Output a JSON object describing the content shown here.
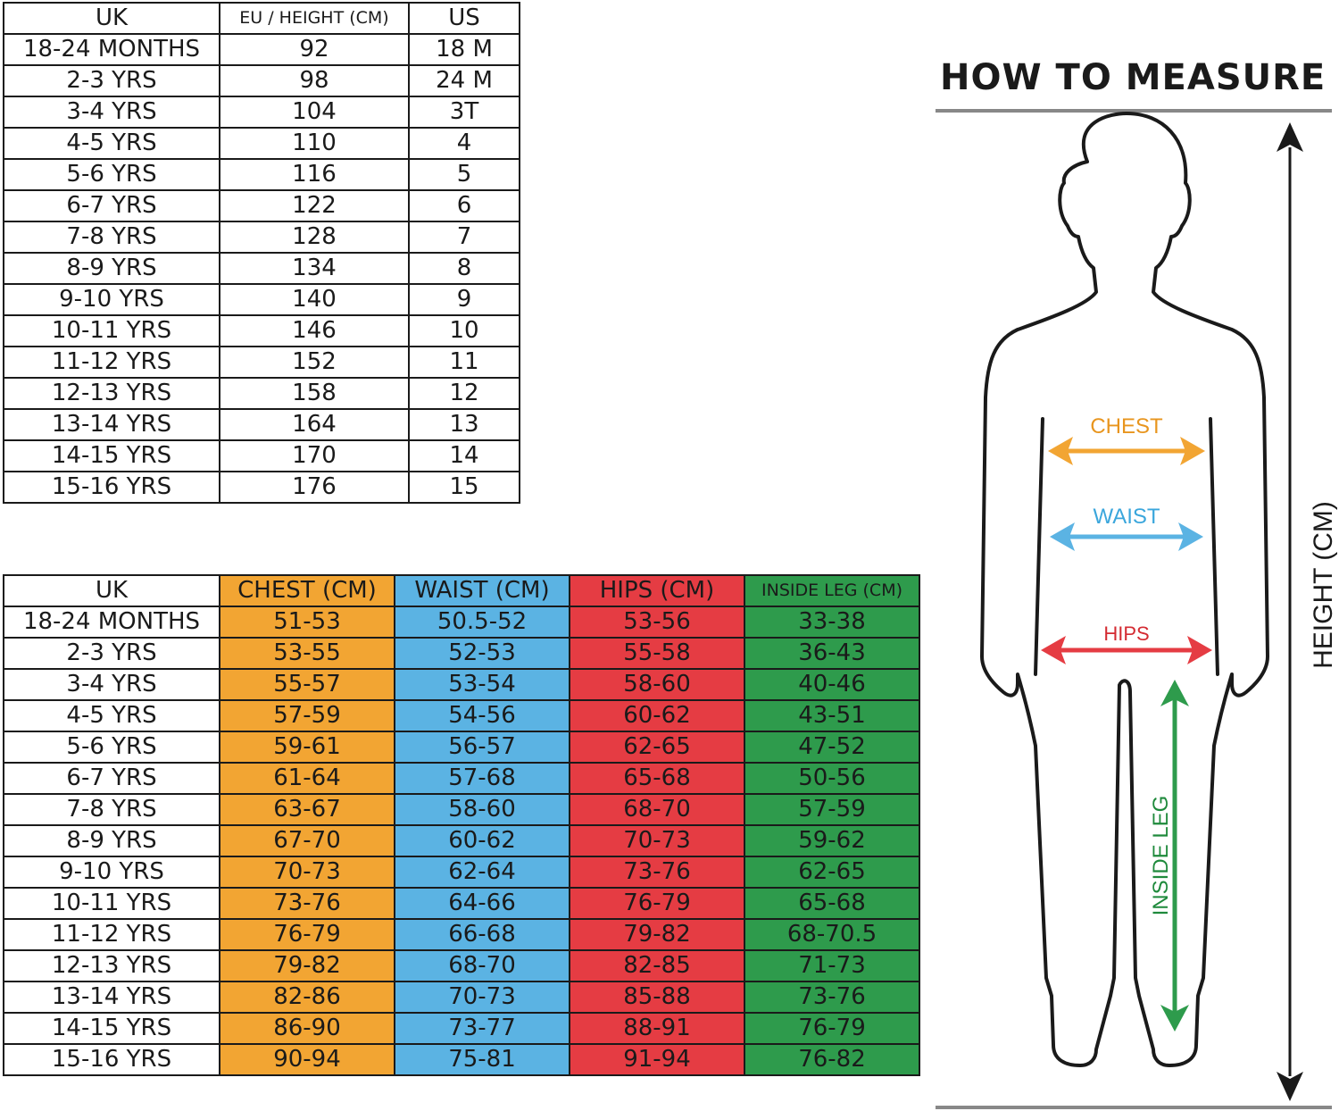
{
  "size_table": {
    "headers": [
      "UK",
      "EU / HEIGHT (CM)",
      "US"
    ],
    "rows": [
      [
        "18-24 MONTHS",
        "92",
        "18 M"
      ],
      [
        "2-3 YRS",
        "98",
        "24 M"
      ],
      [
        "3-4 YRS",
        "104",
        "3T"
      ],
      [
        "4-5 YRS",
        "110",
        "4"
      ],
      [
        "5-6 YRS",
        "116",
        "5"
      ],
      [
        "6-7 YRS",
        "122",
        "6"
      ],
      [
        "7-8 YRS",
        "128",
        "7"
      ],
      [
        "8-9 YRS",
        "134",
        "8"
      ],
      [
        "9-10 YRS",
        "140",
        "9"
      ],
      [
        "10-11 YRS",
        "146",
        "10"
      ],
      [
        "11-12 YRS",
        "152",
        "11"
      ],
      [
        "12-13 YRS",
        "158",
        "12"
      ],
      [
        "13-14 YRS",
        "164",
        "13"
      ],
      [
        "14-15 YRS",
        "170",
        "14"
      ],
      [
        "15-16 YRS",
        "176",
        "15"
      ]
    ]
  },
  "measure_table": {
    "headers": [
      "UK",
      "CHEST (CM)",
      "WAIST (CM)",
      "HIPS (CM)",
      "INSIDE LEG (CM)"
    ],
    "rows": [
      [
        "18-24 MONTHS",
        "51-53",
        "50.5-52",
        "53-56",
        "33-38"
      ],
      [
        "2-3 YRS",
        "53-55",
        "52-53",
        "55-58",
        "36-43"
      ],
      [
        "3-4 YRS",
        "55-57",
        "53-54",
        "58-60",
        "40-46"
      ],
      [
        "4-5 YRS",
        "57-59",
        "54-56",
        "60-62",
        "43-51"
      ],
      [
        "5-6 YRS",
        "59-61",
        "56-57",
        "62-65",
        "47-52"
      ],
      [
        "6-7 YRS",
        "61-64",
        "57-68",
        "65-68",
        "50-56"
      ],
      [
        "7-8 YRS",
        "63-67",
        "58-60",
        "68-70",
        "57-59"
      ],
      [
        "8-9 YRS",
        "67-70",
        "60-62",
        "70-73",
        "59-62"
      ],
      [
        "9-10 YRS",
        "70-73",
        "62-64",
        "73-76",
        "62-65"
      ],
      [
        "10-11 YRS",
        "73-76",
        "64-66",
        "76-79",
        "65-68"
      ],
      [
        "11-12 YRS",
        "76-79",
        "66-68",
        "79-82",
        "68-70.5"
      ],
      [
        "12-13 YRS",
        "79-82",
        "68-70",
        "82-85",
        "71-73"
      ],
      [
        "13-14 YRS",
        "82-86",
        "70-73",
        "85-88",
        "73-76"
      ],
      [
        "14-15 YRS",
        "86-90",
        "73-77",
        "88-91",
        "76-79"
      ],
      [
        "15-16 YRS",
        "90-94",
        "75-81",
        "91-94",
        "76-82"
      ]
    ]
  },
  "how_to_measure": {
    "title": "HOW TO MEASURE",
    "chest_label": "CHEST",
    "waist_label": "WAIST",
    "hips_label": "HIPS",
    "inside_leg_label": "INSIDE LEG",
    "height_label": "HEIGHT (CM)"
  },
  "colors": {
    "chest": "#f2a533",
    "waist": "#5bb3e3",
    "hips": "#e53c43",
    "inside_leg": "#2e9b4c",
    "chest_text": "#e8951e",
    "waist_text": "#3aa6dc",
    "hips_text": "#d42b32",
    "leg_text": "#1f8a3c"
  }
}
